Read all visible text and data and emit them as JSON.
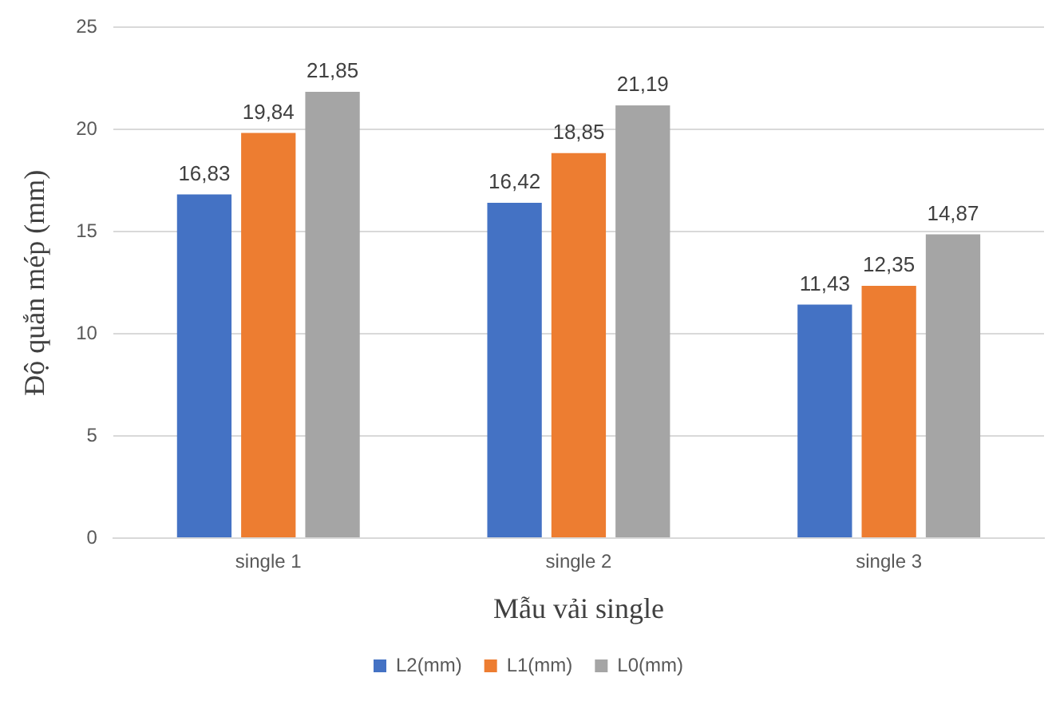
{
  "chart_data": {
    "type": "bar",
    "xlabel": "Mẫu vải single",
    "ylabel": "Độ quắn mép (mm)",
    "categories": [
      "single 1",
      "single 2",
      "single 3"
    ],
    "series": [
      {
        "name": "L2(mm)",
        "color": "#4472c4",
        "values": [
          16.83,
          16.42,
          11.43
        ],
        "value_labels": [
          "16,83",
          "16,42",
          "11,43"
        ]
      },
      {
        "name": "L1(mm)",
        "color": "#ed7d31",
        "values": [
          19.84,
          18.85,
          12.35
        ],
        "value_labels": [
          "19,84",
          "18,85",
          "12,35"
        ]
      },
      {
        "name": "L0(mm)",
        "color": "#a5a5a5",
        "values": [
          21.85,
          21.19,
          14.87
        ],
        "value_labels": [
          "21,85",
          "21,19",
          "14,87"
        ]
      }
    ],
    "ylim": [
      0,
      25
    ],
    "yticks": [
      0,
      5,
      10,
      15,
      20,
      25
    ],
    "grid": "y",
    "legend": "bottom"
  }
}
